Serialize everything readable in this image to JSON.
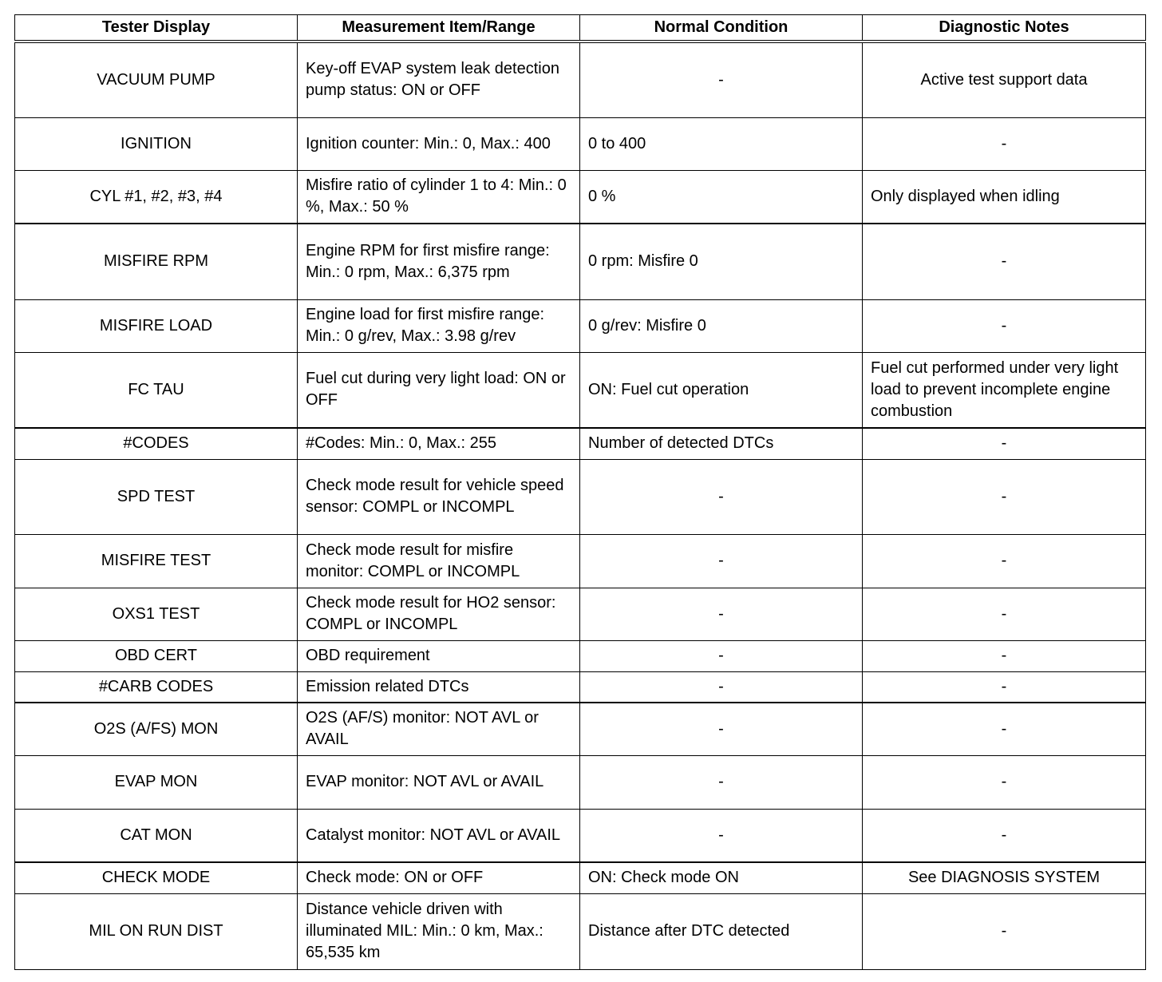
{
  "table": {
    "headers": [
      "Tester Display",
      "Measurement Item/Range",
      "Normal Condition",
      "Diagnostic Notes"
    ],
    "rows": [
      [
        "VACUUM PUMP",
        "Key-off EVAP system leak detection pump status: ON or OFF",
        "-",
        "Active test support data"
      ],
      [
        "IGNITION",
        "Ignition counter: Min.: 0, Max.: 400",
        "0 to 400",
        "-"
      ],
      [
        "CYL #1, #2, #3, #4",
        "Misfire ratio of cylinder 1 to 4: Min.: 0 %, Max.: 50 %",
        "0 %",
        "Only displayed when idling"
      ],
      [
        "MISFIRE RPM",
        "Engine RPM for first misfire range: Min.: 0 rpm, Max.: 6,375 rpm",
        "0 rpm: Misfire 0",
        "-"
      ],
      [
        "MISFIRE LOAD",
        "Engine load for first misfire range: Min.: 0 g/rev, Max.: 3.98 g/rev",
        "0 g/rev: Misfire 0",
        "-"
      ],
      [
        "FC TAU",
        "Fuel cut during very light load: ON or OFF",
        "ON: Fuel cut operation",
        "Fuel cut performed under very light load to prevent incomplete engine combustion"
      ],
      [
        "#CODES",
        "#Codes: Min.: 0, Max.: 255",
        "Number of detected DTCs",
        "-"
      ],
      [
        "SPD TEST",
        "Check mode result for vehicle speed sensor: COMPL or INCOMPL",
        "-",
        "-"
      ],
      [
        "MISFIRE TEST",
        "Check mode result for misfire monitor: COMPL or INCOMPL",
        "-",
        "-"
      ],
      [
        "OXS1 TEST",
        "Check mode result for HO2 sensor: COMPL or INCOMPL",
        "-",
        "-"
      ],
      [
        "OBD CERT",
        "OBD requirement",
        "-",
        "-"
      ],
      [
        "#CARB CODES",
        "Emission related DTCs",
        "-",
        "-"
      ],
      [
        "O2S (A/FS) MON",
        "O2S (AF/S) monitor: NOT AVL or AVAIL",
        "-",
        "-"
      ],
      [
        "EVAP MON",
        "EVAP monitor: NOT AVL or AVAIL",
        "-",
        "-"
      ],
      [
        "CAT MON",
        "Catalyst monitor: NOT AVL or AVAIL",
        "-",
        "-"
      ],
      [
        "CHECK MODE",
        "Check mode: ON or OFF",
        "ON: Check mode ON",
        "See DIAGNOSIS SYSTEM"
      ],
      [
        "MIL ON RUN DIST",
        "Distance vehicle driven with illuminated MIL: Min.: 0 km, Max.: 65,535 km",
        "Distance after DTC detected",
        "-"
      ]
    ]
  }
}
